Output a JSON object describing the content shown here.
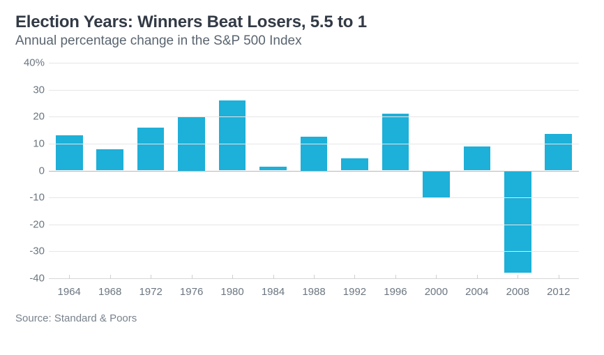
{
  "title": "Election Years: Winners Beat Losers, 5.5 to 1",
  "subtitle": "Annual percentage change in the S&P 500 Index",
  "source": "Source: Standard & Poors",
  "chart": {
    "type": "bar",
    "categories": [
      "1964",
      "1968",
      "1972",
      "1976",
      "1980",
      "1984",
      "1988",
      "1992",
      "1996",
      "2000",
      "2004",
      "2008",
      "2012"
    ],
    "values": [
      13,
      8,
      16,
      20,
      26,
      1.5,
      12.5,
      4.5,
      21,
      -10,
      9,
      -38,
      13.5
    ],
    "bar_color": "#1db0d8",
    "background_color": "#ffffff",
    "grid_color": "#e6e6e6",
    "axis_text_color": "#6b7680",
    "ylim": [
      -40,
      40
    ],
    "ytick_step": 10,
    "ytick_labels": [
      "40%",
      "30",
      "20",
      "10",
      "0",
      "-10",
      "-20",
      "-30",
      "-40"
    ],
    "ytick_values": [
      40,
      30,
      20,
      10,
      0,
      -10,
      -20,
      -30,
      -40
    ],
    "bar_width_ratio": 0.66,
    "title_fontsize": 24,
    "subtitle_fontsize": 19,
    "label_fontsize": 15,
    "baseline_color": "#b8b8b8"
  }
}
